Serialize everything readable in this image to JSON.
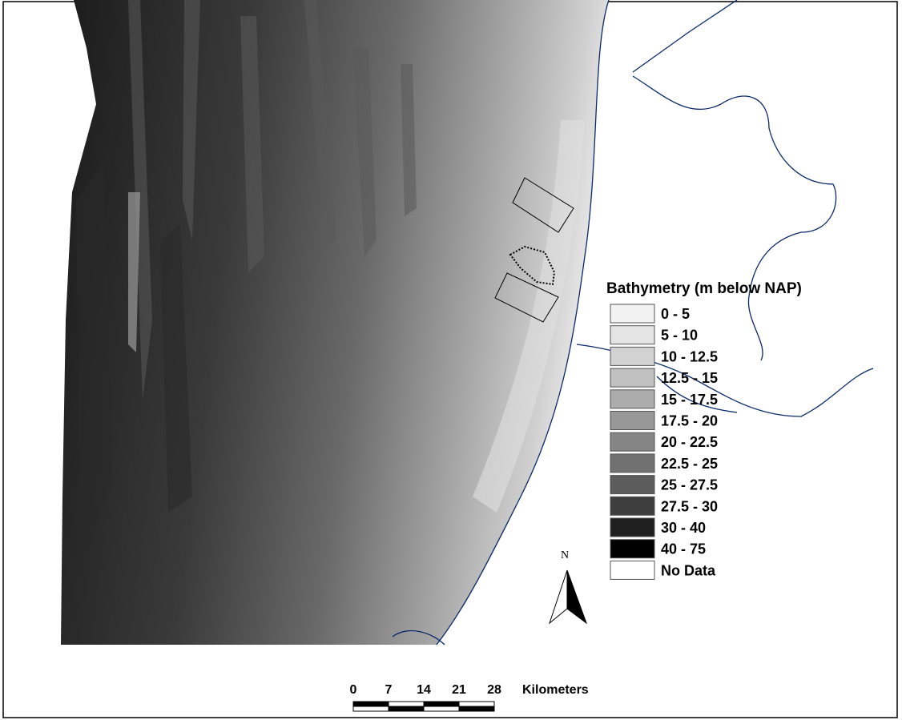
{
  "legend": {
    "title": "Bathymetry (m below NAP)",
    "items": [
      {
        "label": "0 - 5",
        "color": "#f2f2f2"
      },
      {
        "label": "5 - 10",
        "color": "#e4e4e4"
      },
      {
        "label": "10 - 12.5",
        "color": "#d2d2d2"
      },
      {
        "label": "12.5 - 15",
        "color": "#c0c0c0"
      },
      {
        "label": "15 - 17.5",
        "color": "#acacac"
      },
      {
        "label": "17.5 - 20",
        "color": "#989898"
      },
      {
        "label": "20 - 22.5",
        "color": "#858585"
      },
      {
        "label": "22.5 - 25",
        "color": "#717171"
      },
      {
        "label": "25 - 27.5",
        "color": "#5c5c5c"
      },
      {
        "label": "27.5 - 30",
        "color": "#3e3e3e"
      },
      {
        "label": "30 - 40",
        "color": "#202020"
      },
      {
        "label": "40 - 75",
        "color": "#000000"
      },
      {
        "label": "No Data",
        "color": "#ffffff"
      }
    ]
  },
  "north_arrow": {
    "label": "N"
  },
  "scale_bar": {
    "ticks": [
      0,
      7,
      14,
      21,
      28
    ],
    "unit": "Kilometers"
  }
}
